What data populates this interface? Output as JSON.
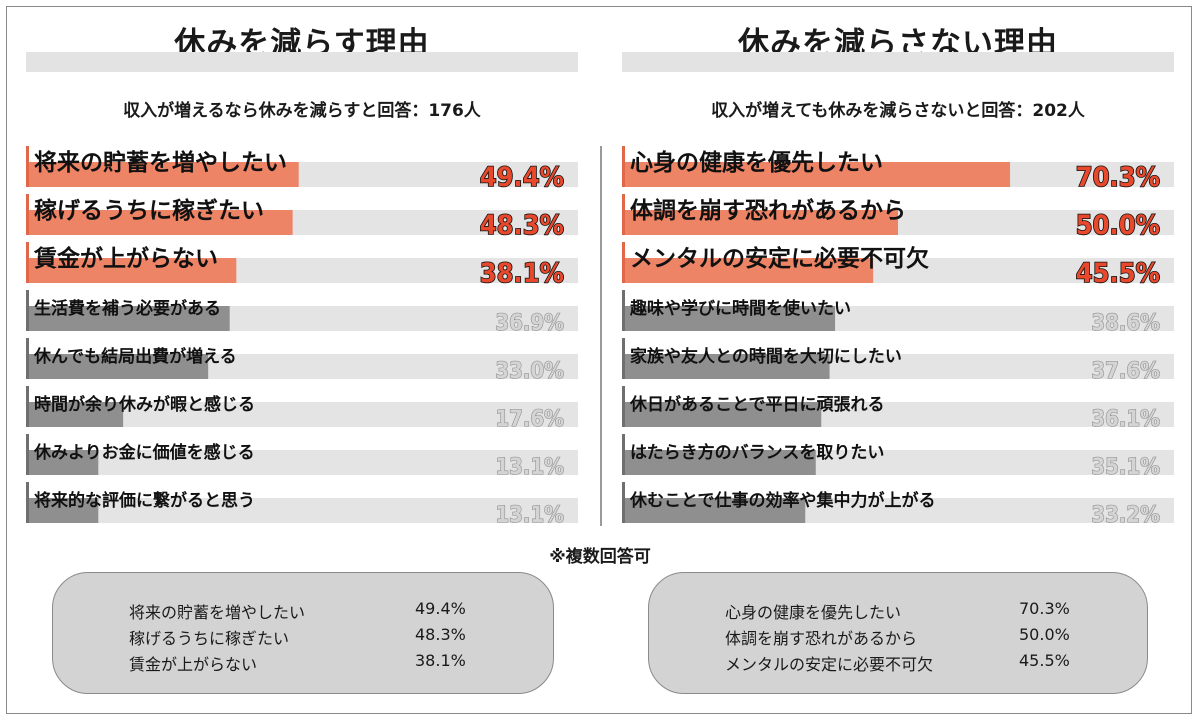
{
  "chart_data": [
    {
      "type": "bar",
      "title": "休みを減らす理由",
      "subtitle": "収入が増えるなら休みを減らすと回答：176人",
      "categories": [
        "将来の貯蓄を増やしたい",
        "稼げるうちに稼ぎたい",
        "賃金が上がらない",
        "生活費を補う必要がある",
        "休んでも結局出費が増える",
        "時間が余り休みが暇と感じる",
        "休みよりお金に価値を感じる",
        "将来的な評価に繋がると思う"
      ],
      "values": [
        49.4,
        48.3,
        38.1,
        36.9,
        33.0,
        17.6,
        13.1,
        13.1
      ],
      "value_labels": [
        "49.4%",
        "48.3%",
        "38.1%",
        "36.9%",
        "33.0%",
        "17.6%",
        "13.1%",
        "13.1%"
      ],
      "highlight_count": 3,
      "xlim": [
        0,
        100
      ]
    },
    {
      "type": "bar",
      "title": "休みを減らさない理由",
      "subtitle": "収入が増えても休みを減らさないと回答：202人",
      "categories": [
        "心身の健康を優先したい",
        "体調を崩す恐れがあるから",
        "メンタルの安定に必要不可欠",
        "趣味や学びに時間を使いたい",
        "家族や友人との時間を大切にしたい",
        "休日があることで平日に頑張れる",
        "はたらき方のバランスを取りたい",
        "休むことで仕事の効率や集中力が上がる"
      ],
      "values": [
        70.3,
        50.0,
        45.5,
        38.6,
        37.6,
        36.1,
        35.1,
        33.2
      ],
      "value_labels": [
        "70.3%",
        "50.0%",
        "45.5%",
        "38.6%",
        "37.6%",
        "36.1%",
        "35.1%",
        "33.2%"
      ],
      "highlight_count": 3,
      "xlim": [
        0,
        100
      ]
    }
  ],
  "note": "※複数回答可",
  "summary_left": [
    {
      "label": "将来の貯蓄を増やしたい",
      "value": "49.4%"
    },
    {
      "label": "稼げるうちに稼ぎたい",
      "value": "48.3%"
    },
    {
      "label": "賃金が上がらない",
      "value": "38.1%"
    }
  ],
  "summary_right": [
    {
      "label": "心身の健康を優先したい",
      "value": "70.3%"
    },
    {
      "label": "体調を崩す恐れがあるから",
      "value": "50.0%"
    },
    {
      "label": "メンタルの安定に必要不可欠",
      "value": "45.5%"
    }
  ],
  "colors": {
    "highlight": "#ee8466",
    "normal": "#8f8f8f",
    "track": "#e4e4e4",
    "highlight_text": "#e8492c",
    "muted_text": "#d4d4d4"
  }
}
